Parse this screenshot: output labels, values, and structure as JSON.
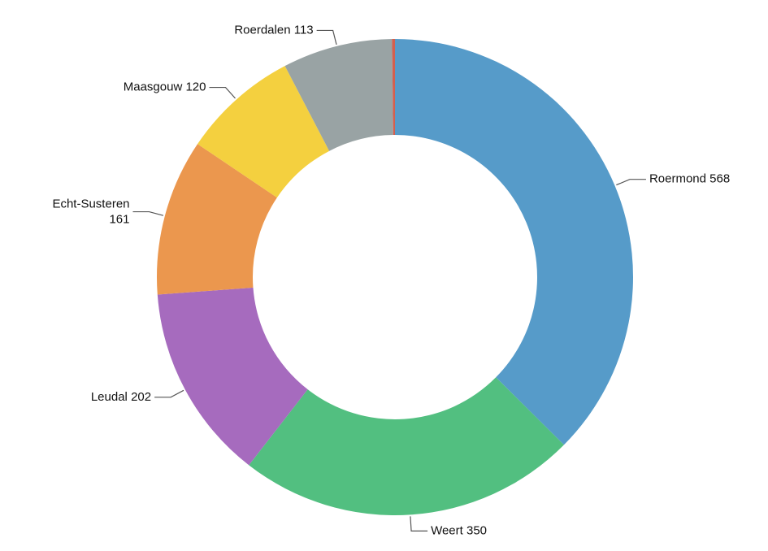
{
  "chart_data": {
    "type": "donut",
    "categories": [
      "Roermond",
      "Weert",
      "Leudal",
      "Echt-Susteren",
      "Maasgouw",
      "Roerdalen",
      null
    ],
    "values": [
      568,
      350,
      202,
      161,
      120,
      113,
      3
    ],
    "colors": [
      "#569bc9",
      "#52bf80",
      "#a66bbe",
      "#eb974e",
      "#f4d03f",
      "#99a3a4",
      "#d3604f"
    ]
  }
}
